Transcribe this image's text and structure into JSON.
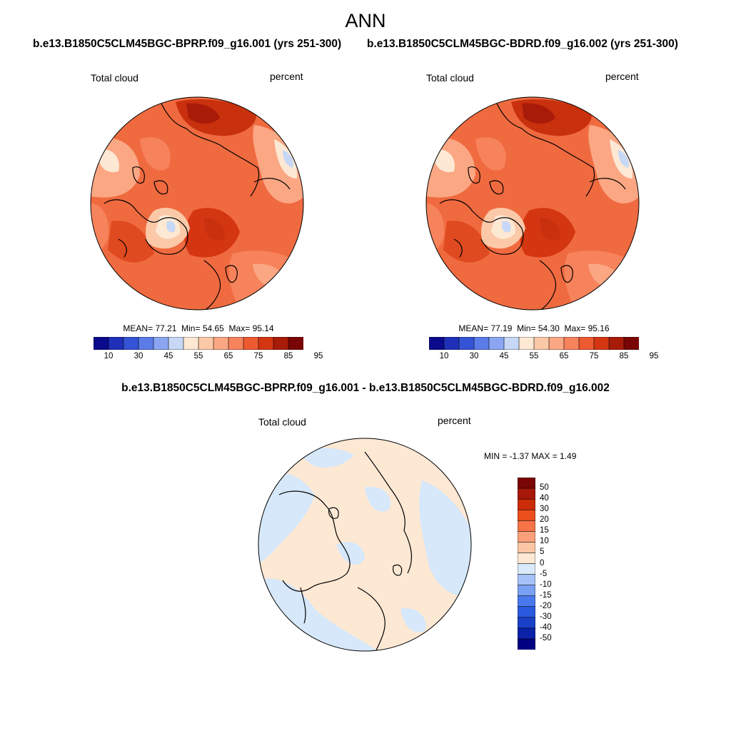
{
  "page": {
    "title": "ANN"
  },
  "panels": [
    {
      "case_title": "b.e13.B1850C5CLM45BGC-BPRP.f09_g16.001 (yrs 251-300)",
      "variable_label": "Total cloud",
      "units_label": "percent",
      "stats": {
        "mean_label": "MEAN=",
        "mean": "77.21",
        "min_label": "Min=",
        "min": "54.65",
        "max_label": "Max=",
        "max": "95.14"
      },
      "colorbar_ticks": [
        "10",
        "30",
        "45",
        "55",
        "65",
        "75",
        "85",
        "95"
      ]
    },
    {
      "case_title": "b.e13.B1850C5CLM45BGC-BDRD.f09_g16.002 (yrs 251-300)",
      "variable_label": "Total cloud",
      "units_label": "percent",
      "stats": {
        "mean_label": "MEAN=",
        "mean": "77.19",
        "min_label": "Min=",
        "min": "54.30",
        "max_label": "Max=",
        "max": "95.16"
      },
      "colorbar_ticks": [
        "10",
        "30",
        "45",
        "55",
        "65",
        "75",
        "85",
        "95"
      ]
    }
  ],
  "difference": {
    "title": "b.e13.B1850C5CLM45BGC-BPRP.f09_g16.001 - b.e13.B1850C5CLM45BGC-BDRD.f09_g16.002",
    "variable_label": "Total cloud",
    "units_label": "percent",
    "stats_text": "MIN =  -1.37 MAX =   1.49",
    "colorbar_ticks": [
      "50",
      "40",
      "30",
      "20",
      "15",
      "10",
      "5",
      "0",
      "-5",
      "-10",
      "-15",
      "-20",
      "-30",
      "-40",
      "-50"
    ]
  },
  "colors": {
    "abs_scale": [
      "#0a0a8c",
      "#1f2fb8",
      "#3553d6",
      "#5b7be8",
      "#8aa6f2",
      "#c6d8f6",
      "#fde8d4",
      "#fcc9a8",
      "#fba784",
      "#f7835c",
      "#ee5a30",
      "#d43612",
      "#a81b08",
      "#7a0505"
    ],
    "diff_scale": [
      "#000080",
      "#0a22a8",
      "#1a40c8",
      "#2a5ae0",
      "#4a78ee",
      "#7aa0f4",
      "#a6c2f6",
      "#daeafa",
      "#fde8d4",
      "#fcc6a4",
      "#fba07a",
      "#f77448",
      "#ec4e1c",
      "#cc2c08",
      "#a81808",
      "#7a0505"
    ],
    "panel_base": "#f06a40",
    "diff_base": "#fde8d4",
    "diff_blue": "#d6e8fa"
  }
}
